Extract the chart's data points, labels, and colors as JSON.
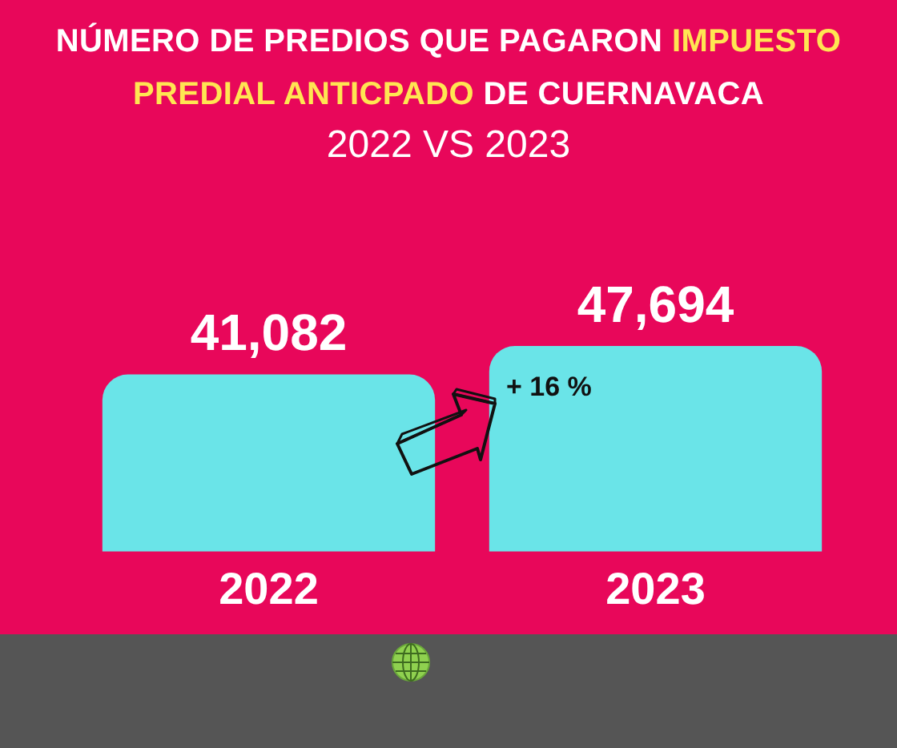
{
  "chart_data": {
    "type": "bar",
    "title": "NÚMERO DE PREDIOS QUE PAGARON IMPUESTO PREDIAL ANTICPADO DE CUERNAVACA",
    "subtitle": "2022 VS 2023",
    "categories": [
      "2022",
      "2023"
    ],
    "values": [
      41082,
      47694
    ],
    "value_labels": [
      "41,082",
      "47,694"
    ],
    "color": "#6ae4e8",
    "tick_labels": "x",
    "annotations": [
      "+ 16 %"
    ]
  }
}
